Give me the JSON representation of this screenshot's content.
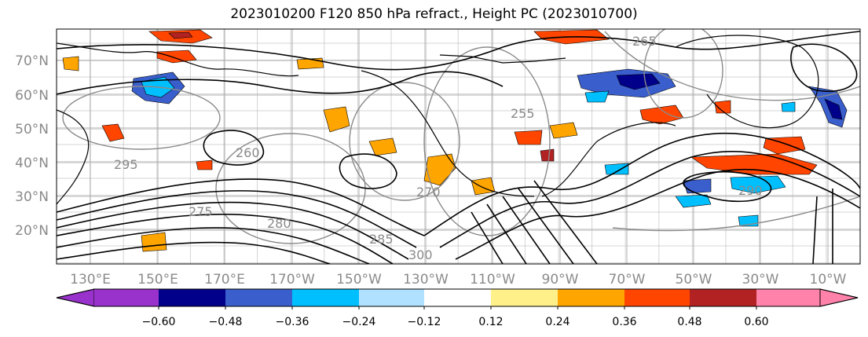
{
  "title": "2023010200 F120 850 hPa refract., Height PC (2023010700)",
  "lat_labels": [
    "70°N",
    "60°N",
    "50°N",
    "40°N",
    "30°N",
    "20°N"
  ],
  "lon_labels": [
    "130°E",
    "150°E",
    "170°E",
    "170°W",
    "150°W",
    "130°W",
    "110°W",
    "90°W",
    "70°W",
    "50°W",
    "30°W",
    "10°W"
  ],
  "colorbar": {
    "ticks": [
      "−0.60",
      "−0.48",
      "−0.36",
      "−0.24",
      "−0.12",
      "0.12",
      "0.24",
      "0.36",
      "0.48",
      "0.60"
    ],
    "colors": [
      "#9932cc",
      "#00008b",
      "#3a5fcd",
      "#00bfff",
      "#b0e2ff",
      "#ffffff",
      "#fff08a",
      "#ffa500",
      "#ff4500",
      "#b22222",
      "#ff82ab",
      "#ff82ab"
    ]
  },
  "contour_labels": [
    "265",
    "260",
    "255",
    "270",
    "275",
    "280",
    "285",
    "290",
    "295",
    "300"
  ],
  "colors": {
    "label_gray": "#8a8a8a",
    "grid": "#b0b0b0",
    "contour": "#000000"
  }
}
